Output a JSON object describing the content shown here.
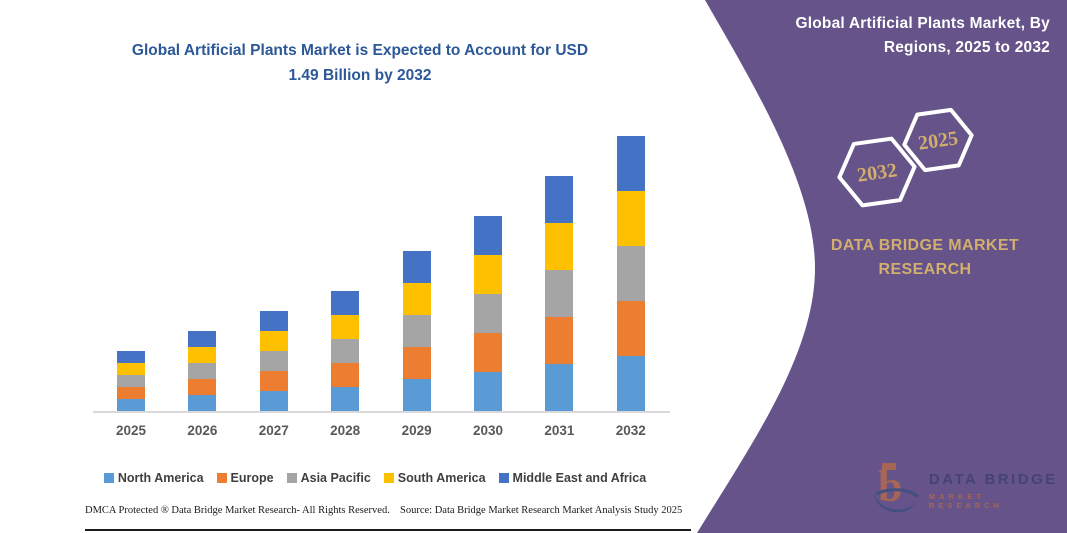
{
  "chart": {
    "title_lines": [
      "Global Artificial Plants Market is Expected to Account for USD",
      "1.49 Billion by 2032"
    ]
  },
  "chart_data": {
    "type": "bar",
    "stacked": true,
    "title": "Global Artificial Plants Market is Expected to Account for USD 1.49 Billion by 2032",
    "unit": "USD Billion",
    "categories": [
      "2025",
      "2026",
      "2027",
      "2028",
      "2029",
      "2030",
      "2031",
      "2032"
    ],
    "series": [
      {
        "name": "North America",
        "color": "#5B9BD5",
        "values": [
          0.064,
          0.086,
          0.106,
          0.128,
          0.17,
          0.212,
          0.254,
          0.298
        ]
      },
      {
        "name": "Europe",
        "color": "#ED7D31",
        "values": [
          0.064,
          0.086,
          0.106,
          0.128,
          0.17,
          0.212,
          0.254,
          0.298
        ]
      },
      {
        "name": "Asia Pacific",
        "color": "#A5A5A5",
        "values": [
          0.064,
          0.086,
          0.106,
          0.128,
          0.17,
          0.212,
          0.254,
          0.298
        ]
      },
      {
        "name": "South America",
        "color": "#FFC000",
        "values": [
          0.064,
          0.086,
          0.106,
          0.128,
          0.17,
          0.212,
          0.254,
          0.298
        ]
      },
      {
        "name": "Middle East and Africa",
        "color": "#4472C4",
        "values": [
          0.064,
          0.086,
          0.106,
          0.128,
          0.17,
          0.212,
          0.254,
          0.298
        ]
      }
    ],
    "totals": [
      0.32,
      0.43,
      0.53,
      0.64,
      0.85,
      1.06,
      1.27,
      1.49
    ],
    "xlabel": "",
    "ylabel": "",
    "ylim": [
      0,
      1.6
    ],
    "gridlines": false,
    "legend_position": "bottom"
  },
  "side_panel": {
    "title_lines": [
      "Global Artificial Plants Market, By",
      "Regions, 2025 to 2032"
    ],
    "hexagons": [
      {
        "label": "2032"
      },
      {
        "label": "2025"
      }
    ],
    "brand_line1": "DATA BRIDGE MARKET",
    "brand_line2": "RESEARCH",
    "logo_title": "DATA BRIDGE",
    "logo_subtitle": "MARKET RESEARCH",
    "colors": {
      "background": "#655389",
      "gold": "#D2AF6E",
      "title_blue": "#2C5898"
    }
  },
  "footer": {
    "left": "DMCA Protected ® Data Bridge Market Research-  All Rights Reserved.",
    "source": "Source: Data Bridge Market Research  Market Analysis Study 2025"
  }
}
